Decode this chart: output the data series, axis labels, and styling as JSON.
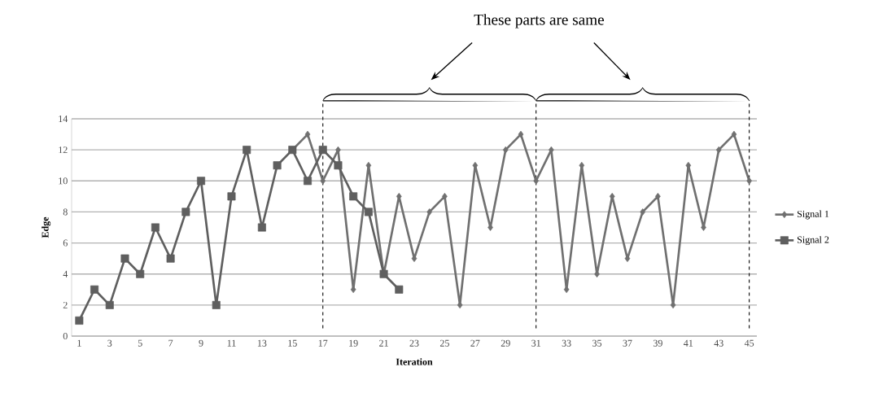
{
  "chart_data": {
    "type": "line",
    "xlabel": "Iteration",
    "ylabel": "Edge",
    "annotations": [
      "These parts are same"
    ],
    "x": [
      1,
      2,
      3,
      4,
      5,
      6,
      7,
      8,
      9,
      10,
      11,
      12,
      13,
      14,
      15,
      16,
      17,
      18,
      19,
      20,
      21,
      22,
      23,
      24,
      25,
      26,
      27,
      28,
      29,
      30,
      31,
      32,
      33,
      34,
      35,
      36,
      37,
      38,
      39,
      40,
      41,
      42,
      43,
      44,
      45
    ],
    "xlim": [
      0.5,
      45.5
    ],
    "xticks": [
      1,
      3,
      5,
      7,
      9,
      11,
      13,
      15,
      17,
      19,
      21,
      23,
      25,
      27,
      29,
      31,
      33,
      35,
      37,
      39,
      41,
      43,
      45
    ],
    "ylim": [
      0,
      14
    ],
    "yticks": [
      0,
      2,
      4,
      6,
      8,
      10,
      12,
      14
    ],
    "grid": "y",
    "legend": "right",
    "series": [
      {
        "name": "Signal 1",
        "color": "#707070",
        "marker": "diamond",
        "values": [
          null,
          null,
          null,
          null,
          null,
          null,
          null,
          null,
          null,
          null,
          null,
          null,
          null,
          null,
          12,
          13,
          10,
          12,
          3,
          11,
          4,
          9,
          5,
          8,
          9,
          2,
          11,
          7,
          12,
          13,
          10,
          12,
          3,
          11,
          4,
          9,
          5,
          8,
          9,
          2,
          11,
          7,
          12,
          13,
          10
        ]
      },
      {
        "name": "Signal 2",
        "color": "#5f5f5f",
        "marker": "square",
        "values": [
          1,
          3,
          2,
          5,
          4,
          7,
          5,
          8,
          10,
          2,
          9,
          12,
          7,
          11,
          12,
          10,
          12,
          11,
          9,
          8,
          4,
          3,
          null,
          null,
          null,
          null,
          null,
          null,
          null,
          null,
          null,
          null,
          null,
          null,
          null,
          null,
          null,
          null,
          null,
          null,
          null,
          null,
          null,
          null,
          null
        ]
      }
    ],
    "ref_lines": [
      {
        "axis": "x",
        "value": 17,
        "color": "#000000",
        "line_style": "dashed"
      },
      {
        "axis": "x",
        "value": 31,
        "color": "#000000",
        "line_style": "dashed"
      },
      {
        "axis": "x",
        "value": 45,
        "color": "#000000",
        "line_style": "dashed"
      }
    ]
  }
}
